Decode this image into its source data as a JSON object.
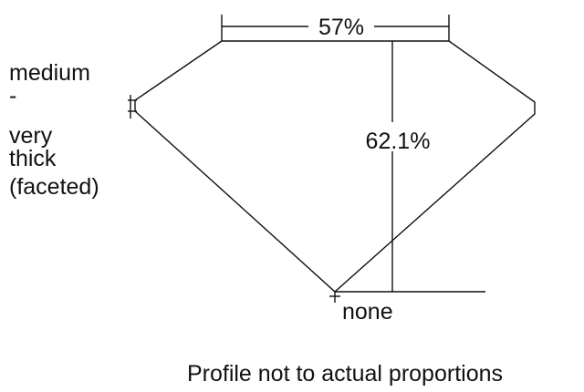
{
  "diagram": {
    "table_label": "57%",
    "depth_label": "62.1%",
    "girdle_label_lines": [
      "medium",
      "-",
      "very",
      "thick",
      "(faceted)"
    ],
    "culet_label": "none",
    "caption": "Profile not to actual proportions"
  },
  "colors": {
    "stroke": "#111111",
    "background": "#ffffff"
  }
}
